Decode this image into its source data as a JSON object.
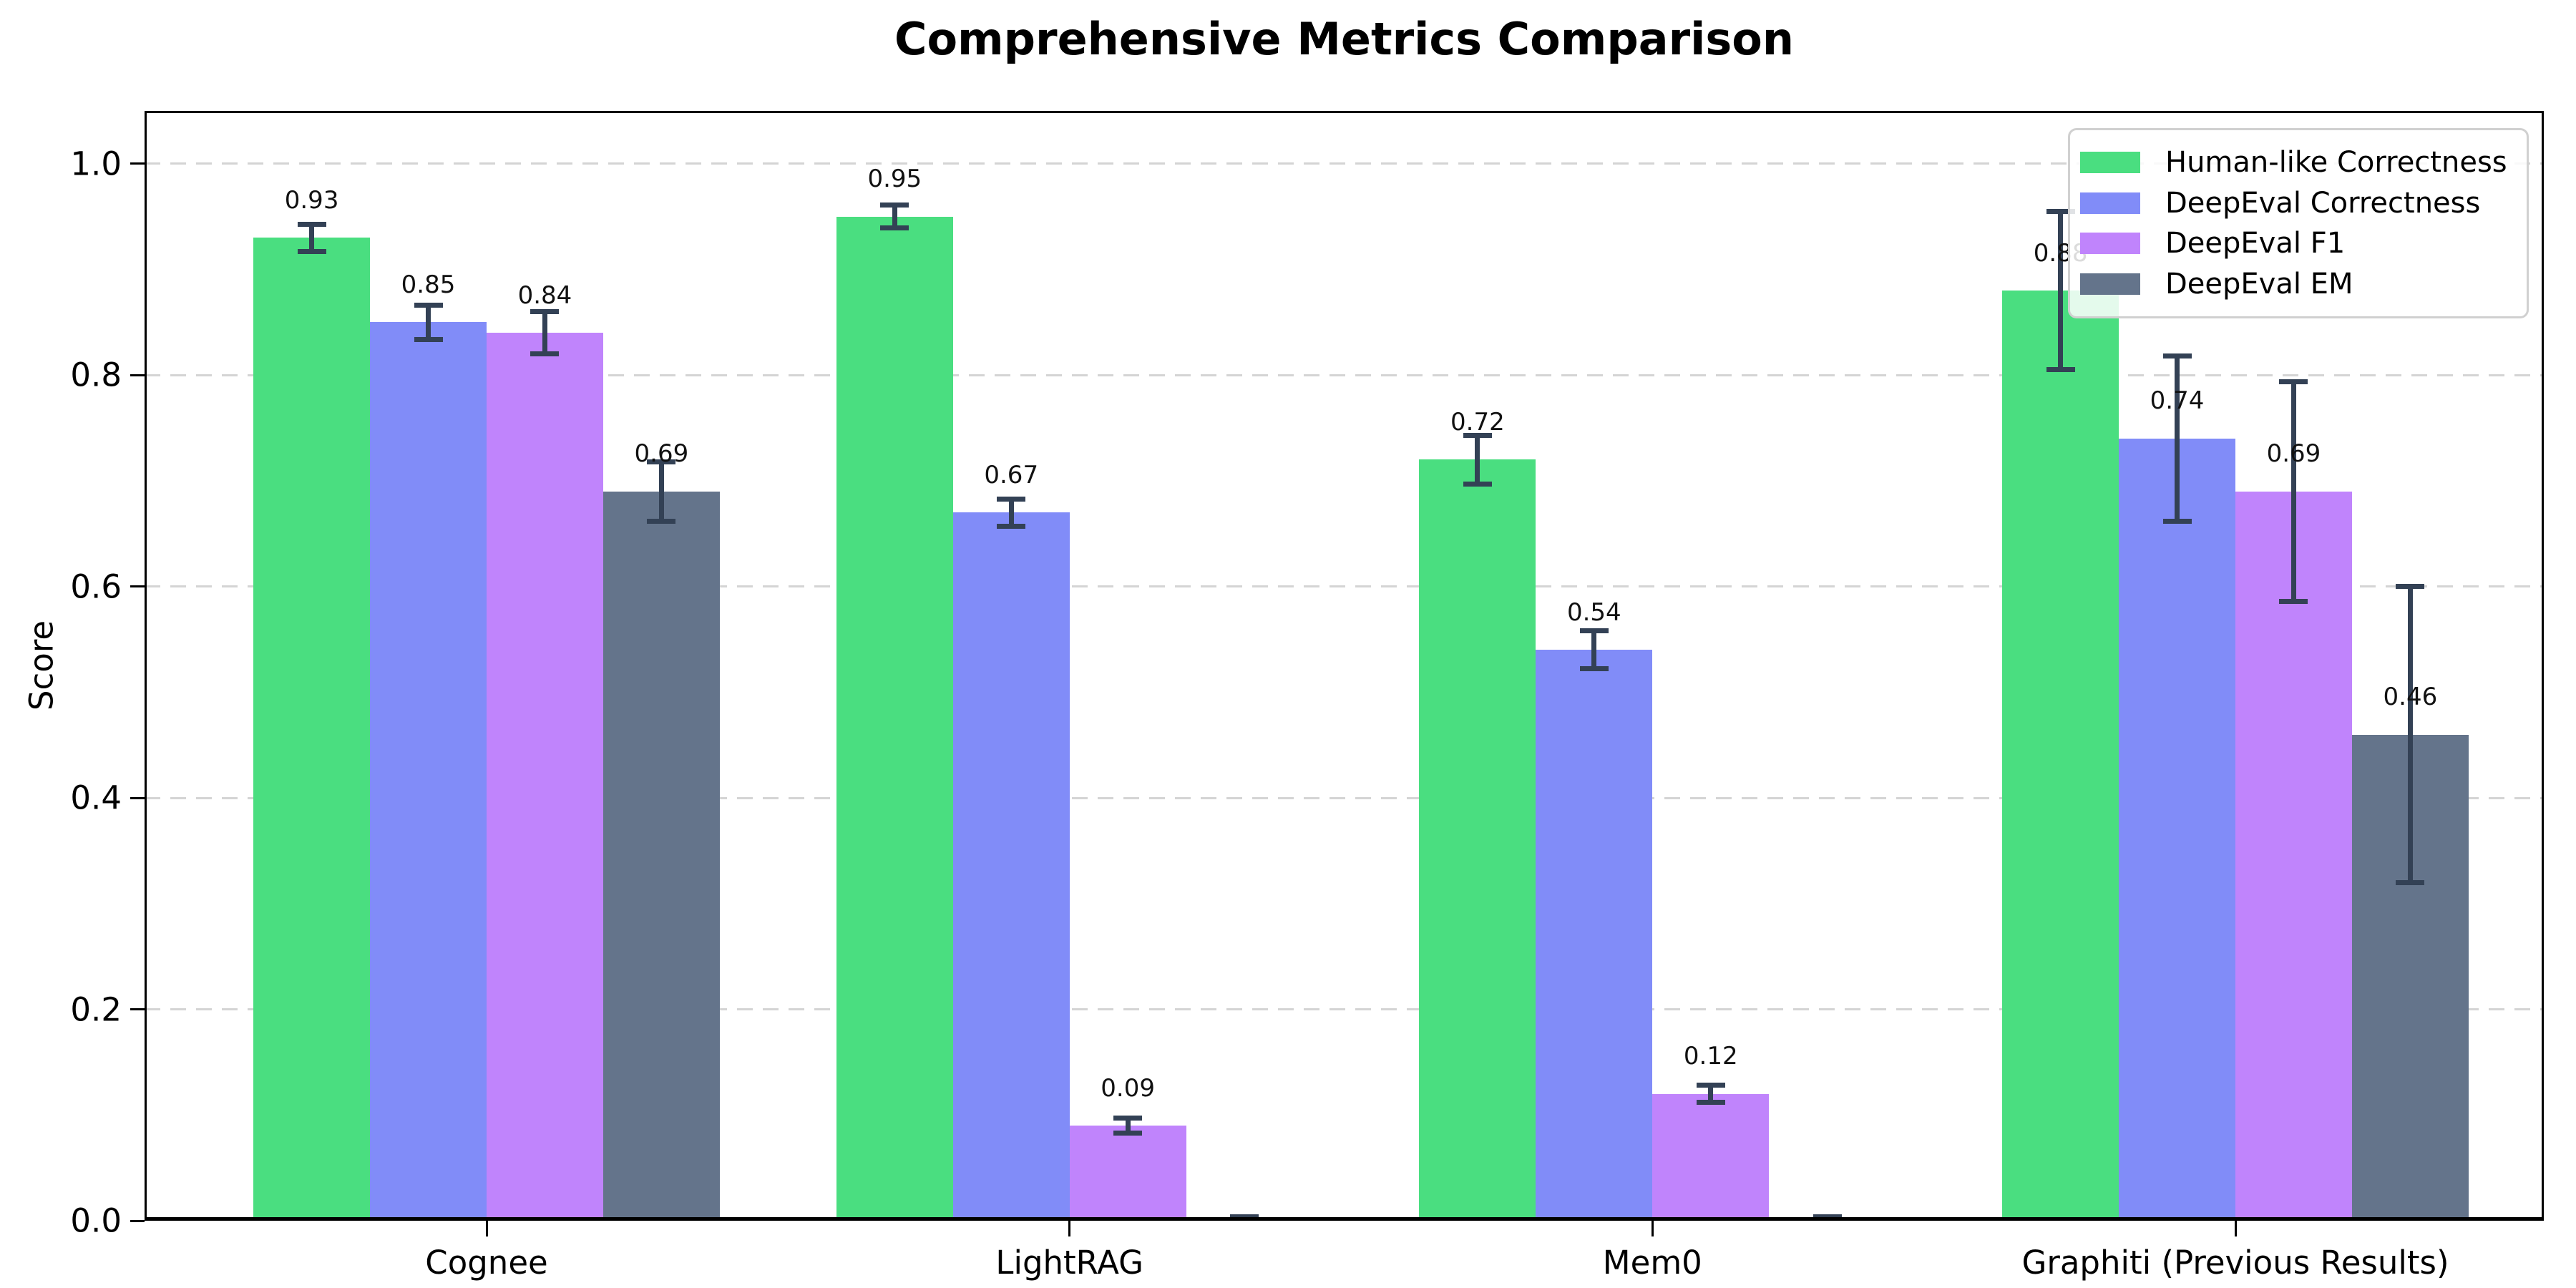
{
  "chart_data": {
    "type": "bar",
    "title": "Comprehensive Metrics Comparison",
    "xlabel": "",
    "ylabel": "Score",
    "categories": [
      "Cognee",
      "LightRAG",
      "Mem0",
      "Graphiti (Previous Results)"
    ],
    "series": [
      {
        "name": "Human-like Correctness",
        "color": "#4ade80",
        "values": [
          0.93,
          0.95,
          0.72,
          0.88
        ],
        "errors": [
          0.013,
          0.011,
          0.023,
          0.075
        ],
        "value_labels": [
          "0.93",
          "0.95",
          "0.72",
          "0.88"
        ]
      },
      {
        "name": "DeepEval Correctness",
        "color": "#818cf8",
        "values": [
          0.85,
          0.67,
          0.54,
          0.74
        ],
        "errors": [
          0.016,
          0.013,
          0.018,
          0.078
        ],
        "value_labels": [
          "0.85",
          "0.67",
          "0.54",
          "0.74"
        ]
      },
      {
        "name": "DeepEval F1",
        "color": "#c084fc",
        "values": [
          0.84,
          0.09,
          0.12,
          0.69
        ],
        "errors": [
          0.02,
          0.007,
          0.008,
          0.104
        ],
        "value_labels": [
          "0.84",
          "0.09",
          "0.12",
          "0.69"
        ]
      },
      {
        "name": "DeepEval EM",
        "color": "#64748b",
        "values": [
          0.69,
          0.0,
          0.0,
          0.46
        ],
        "errors": [
          0.028,
          0.004,
          0.004,
          0.14
        ],
        "value_labels": [
          "0.69",
          "",
          "",
          "0.46"
        ]
      }
    ],
    "ylim": [
      0.0,
      1.05
    ],
    "yticks": [
      0.0,
      0.2,
      0.4,
      0.6,
      0.8,
      1.0
    ],
    "ytick_labels": [
      "0.0",
      "0.2",
      "0.4",
      "0.6",
      "0.8",
      "1.0"
    ],
    "grid": "horizontal-dashed",
    "legend_position": "upper right",
    "colors": {
      "errorbar": "#334155",
      "gridline": "#d4d4d4",
      "spine": "#000000",
      "background": "#ffffff",
      "value_label": "#111111"
    }
  }
}
